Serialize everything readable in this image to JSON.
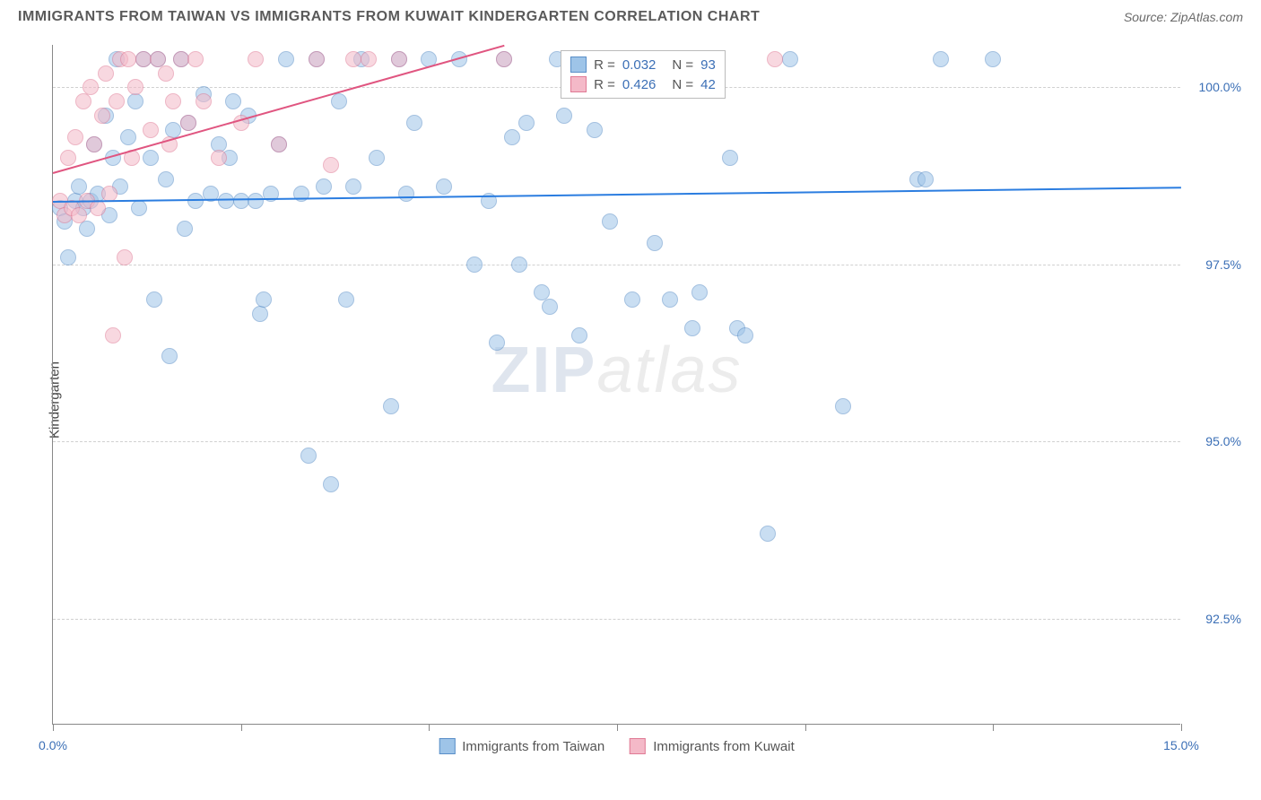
{
  "header": {
    "title": "IMMIGRANTS FROM TAIWAN VS IMMIGRANTS FROM KUWAIT KINDERGARTEN CORRELATION CHART",
    "source_label": "Source: ZipAtlas.com"
  },
  "chart": {
    "type": "scatter",
    "y_axis_label": "Kindergarten",
    "xlim": [
      0.0,
      15.0
    ],
    "ylim": [
      91.0,
      100.6
    ],
    "x_ticks": [
      0.0,
      2.5,
      5.0,
      7.5,
      10.0,
      12.5,
      15.0
    ],
    "x_tick_labels": {
      "0": "0.0%",
      "15": "15.0%"
    },
    "y_ticks": [
      92.5,
      95.0,
      97.5,
      100.0
    ],
    "y_tick_labels": [
      "92.5%",
      "95.0%",
      "97.5%",
      "100.0%"
    ],
    "background_color": "#ffffff",
    "grid_color": "#d0d0d0",
    "axis_color": "#888888",
    "tick_label_color": "#3b6fb6",
    "marker_radius": 9,
    "marker_opacity": 0.55,
    "watermark": "ZIPatlas",
    "series": [
      {
        "name": "Immigrants from Taiwan",
        "fill_color": "#9ec4e8",
        "stroke_color": "#5a8fc8",
        "trend": {
          "x1": 0.0,
          "y1": 98.4,
          "x2": 15.0,
          "y2": 98.6,
          "color": "#2b7de0",
          "width": 2
        },
        "R": "0.032",
        "N": "93",
        "points": [
          [
            0.1,
            98.3
          ],
          [
            0.15,
            98.1
          ],
          [
            0.2,
            97.6
          ],
          [
            0.3,
            98.4
          ],
          [
            0.35,
            98.6
          ],
          [
            0.4,
            98.3
          ],
          [
            0.45,
            98.0
          ],
          [
            0.5,
            98.4
          ],
          [
            0.55,
            99.2
          ],
          [
            0.6,
            98.5
          ],
          [
            0.7,
            99.6
          ],
          [
            0.75,
            98.2
          ],
          [
            0.8,
            99.0
          ],
          [
            0.85,
            100.4
          ],
          [
            0.9,
            98.6
          ],
          [
            1.0,
            99.3
          ],
          [
            1.1,
            99.8
          ],
          [
            1.15,
            98.3
          ],
          [
            1.2,
            100.4
          ],
          [
            1.3,
            99.0
          ],
          [
            1.35,
            97.0
          ],
          [
            1.4,
            100.4
          ],
          [
            1.5,
            98.7
          ],
          [
            1.55,
            96.2
          ],
          [
            1.6,
            99.4
          ],
          [
            1.7,
            100.4
          ],
          [
            1.75,
            98.0
          ],
          [
            1.8,
            99.5
          ],
          [
            1.9,
            98.4
          ],
          [
            2.0,
            99.9
          ],
          [
            2.1,
            98.5
          ],
          [
            2.2,
            99.2
          ],
          [
            2.3,
            98.4
          ],
          [
            2.35,
            99.0
          ],
          [
            2.4,
            99.8
          ],
          [
            2.5,
            98.4
          ],
          [
            2.6,
            99.6
          ],
          [
            2.7,
            98.4
          ],
          [
            2.75,
            96.8
          ],
          [
            2.8,
            97.0
          ],
          [
            2.9,
            98.5
          ],
          [
            3.0,
            99.2
          ],
          [
            3.1,
            100.4
          ],
          [
            3.3,
            98.5
          ],
          [
            3.4,
            94.8
          ],
          [
            3.5,
            100.4
          ],
          [
            3.6,
            98.6
          ],
          [
            3.7,
            94.4
          ],
          [
            3.8,
            99.8
          ],
          [
            3.9,
            97.0
          ],
          [
            4.0,
            98.6
          ],
          [
            4.1,
            100.4
          ],
          [
            4.3,
            99.0
          ],
          [
            4.5,
            95.5
          ],
          [
            4.6,
            100.4
          ],
          [
            4.7,
            98.5
          ],
          [
            4.8,
            99.5
          ],
          [
            5.0,
            100.4
          ],
          [
            5.2,
            98.6
          ],
          [
            5.4,
            100.4
          ],
          [
            5.6,
            97.5
          ],
          [
            5.8,
            98.4
          ],
          [
            5.9,
            96.4
          ],
          [
            6.0,
            100.4
          ],
          [
            6.1,
            99.3
          ],
          [
            6.2,
            97.5
          ],
          [
            6.3,
            99.5
          ],
          [
            6.5,
            97.1
          ],
          [
            6.6,
            96.9
          ],
          [
            6.7,
            100.4
          ],
          [
            6.8,
            99.6
          ],
          [
            7.0,
            96.5
          ],
          [
            7.2,
            99.4
          ],
          [
            7.4,
            98.1
          ],
          [
            7.5,
            100.4
          ],
          [
            7.7,
            97.0
          ],
          [
            8.0,
            97.8
          ],
          [
            8.2,
            97.0
          ],
          [
            8.5,
            96.6
          ],
          [
            8.6,
            97.1
          ],
          [
            9.0,
            99.0
          ],
          [
            9.1,
            96.6
          ],
          [
            9.2,
            96.5
          ],
          [
            9.5,
            93.7
          ],
          [
            9.8,
            100.4
          ],
          [
            10.5,
            95.5
          ],
          [
            11.5,
            98.7
          ],
          [
            11.6,
            98.7
          ],
          [
            11.8,
            100.4
          ],
          [
            12.5,
            100.4
          ]
        ]
      },
      {
        "name": "Immigrants from Kuwait",
        "fill_color": "#f4b9c8",
        "stroke_color": "#e07a95",
        "trend": {
          "x1": 0.0,
          "y1": 98.8,
          "x2": 6.0,
          "y2": 100.6,
          "color": "#e05580",
          "width": 2
        },
        "R": "0.426",
        "N": "42",
        "points": [
          [
            0.1,
            98.4
          ],
          [
            0.15,
            98.2
          ],
          [
            0.2,
            99.0
          ],
          [
            0.25,
            98.3
          ],
          [
            0.3,
            99.3
          ],
          [
            0.35,
            98.2
          ],
          [
            0.4,
            99.8
          ],
          [
            0.45,
            98.4
          ],
          [
            0.5,
            100.0
          ],
          [
            0.55,
            99.2
          ],
          [
            0.6,
            98.3
          ],
          [
            0.65,
            99.6
          ],
          [
            0.7,
            100.2
          ],
          [
            0.75,
            98.5
          ],
          [
            0.8,
            96.5
          ],
          [
            0.85,
            99.8
          ],
          [
            0.9,
            100.4
          ],
          [
            0.95,
            97.6
          ],
          [
            1.0,
            100.4
          ],
          [
            1.05,
            99.0
          ],
          [
            1.1,
            100.0
          ],
          [
            1.2,
            100.4
          ],
          [
            1.3,
            99.4
          ],
          [
            1.4,
            100.4
          ],
          [
            1.5,
            100.2
          ],
          [
            1.55,
            99.2
          ],
          [
            1.6,
            99.8
          ],
          [
            1.7,
            100.4
          ],
          [
            1.8,
            99.5
          ],
          [
            1.9,
            100.4
          ],
          [
            2.0,
            99.8
          ],
          [
            2.2,
            99.0
          ],
          [
            2.5,
            99.5
          ],
          [
            2.7,
            100.4
          ],
          [
            3.0,
            99.2
          ],
          [
            3.5,
            100.4
          ],
          [
            3.7,
            98.9
          ],
          [
            4.0,
            100.4
          ],
          [
            4.2,
            100.4
          ],
          [
            4.6,
            100.4
          ],
          [
            6.0,
            100.4
          ],
          [
            9.6,
            100.4
          ]
        ]
      }
    ],
    "legend_box": {
      "left_pct": 45
    },
    "bottom_legend": [
      {
        "label": "Immigrants from Taiwan",
        "fill": "#9ec4e8",
        "stroke": "#5a8fc8"
      },
      {
        "label": "Immigrants from Kuwait",
        "fill": "#f4b9c8",
        "stroke": "#e07a95"
      }
    ]
  }
}
